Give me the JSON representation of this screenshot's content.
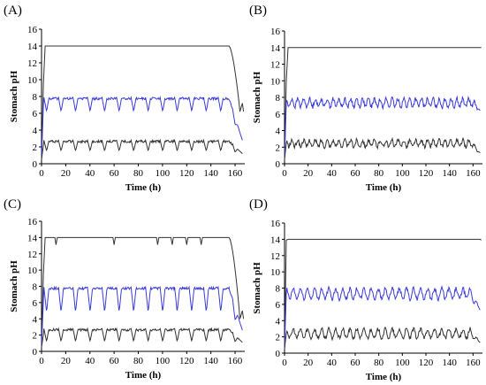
{
  "chart_data": [
    {
      "panel": "(A)",
      "type": "line",
      "xlabel": "Time (h)",
      "ylabel": "Stomach pH",
      "xlim": [
        0,
        168
      ],
      "ylim": [
        0,
        16
      ],
      "xticks": [
        0,
        20,
        40,
        60,
        80,
        100,
        120,
        140,
        160
      ],
      "yticks": [
        0,
        2,
        4,
        6,
        8,
        10,
        12,
        14,
        16
      ],
      "series": [
        {
          "color": "#333333",
          "pattern": "top_plateau",
          "level": 14,
          "start": 0.5,
          "early": 9.5,
          "drop_start": 155,
          "end_value": 6.2
        },
        {
          "color": "#3b3bd9",
          "pattern": "oscillating",
          "low": 6.2,
          "high": 7.9,
          "period": 12,
          "start": 0.5,
          "end_drop_start": 155,
          "end_value": 2.8
        },
        {
          "color": "#333333",
          "pattern": "oscillating",
          "low": 1.5,
          "high": 2.8,
          "period": 12,
          "start": 0.5,
          "end_drop_start": 155,
          "end_value": 1.2
        }
      ]
    },
    {
      "panel": "(B)",
      "type": "line",
      "xlabel": "Time (h)",
      "ylabel": "Stomach pH",
      "xlim": [
        0,
        168
      ],
      "ylim": [
        0,
        16
      ],
      "xticks": [
        0,
        20,
        40,
        60,
        80,
        100,
        120,
        140,
        160
      ],
      "yticks": [
        0,
        2,
        4,
        6,
        8,
        10,
        12,
        14,
        16
      ],
      "series": [
        {
          "color": "#333333",
          "pattern": "top_plateau",
          "level": 14,
          "start": 0.5,
          "early": 10,
          "drop_start": 999,
          "end_value": 14
        },
        {
          "color": "#3b3bd9",
          "pattern": "noisy",
          "low": 6.8,
          "high": 7.9,
          "period": 5,
          "start": 0.5,
          "end_drop_start": 160,
          "end_value": 6.4
        },
        {
          "color": "#333333",
          "pattern": "noisy",
          "low": 2.0,
          "high": 2.9,
          "period": 5,
          "start": 0.5,
          "end_drop_start": 158,
          "end_value": 1.3
        }
      ]
    },
    {
      "panel": "(C)",
      "type": "line",
      "xlabel": "Time (h)",
      "ylabel": "Stomach pH",
      "xlim": [
        0,
        168
      ],
      "ylim": [
        0,
        16
      ],
      "xticks": [
        0,
        20,
        40,
        60,
        80,
        100,
        120,
        140,
        160
      ],
      "yticks": [
        0,
        2,
        4,
        6,
        8,
        10,
        12,
        14,
        16
      ],
      "series": [
        {
          "color": "#333333",
          "pattern": "top_plateau_dips",
          "level": 14,
          "start": 0.5,
          "early": 9.5,
          "drop_start": 155,
          "end_value": 4.0,
          "dips": [
            12,
            60,
            96,
            108,
            120,
            132
          ]
        },
        {
          "color": "#3b3bd9",
          "pattern": "oscillating",
          "low": 4.8,
          "high": 7.9,
          "period": 12,
          "start": 0.5,
          "end_drop_start": 155,
          "end_value": 2.6
        },
        {
          "color": "#333333",
          "pattern": "oscillating",
          "low": 1.2,
          "high": 2.8,
          "period": 12,
          "start": 0.5,
          "end_drop_start": 155,
          "end_value": 1.1
        }
      ]
    },
    {
      "panel": "(D)",
      "type": "line",
      "xlabel": "Time (h)",
      "ylabel": "Stomach pH",
      "xlim": [
        0,
        168
      ],
      "ylim": [
        0,
        16
      ],
      "xticks": [
        0,
        20,
        40,
        60,
        80,
        100,
        120,
        140,
        160
      ],
      "yticks": [
        0,
        2,
        4,
        6,
        8,
        10,
        12,
        14,
        16
      ],
      "series": [
        {
          "color": "#333333",
          "pattern": "top_plateau",
          "level": 14,
          "start": 0.5,
          "early": 13.9,
          "drop_start": 999,
          "end_value": 13.9
        },
        {
          "color": "#3b3bd9",
          "pattern": "noisy",
          "low": 6.6,
          "high": 8.0,
          "period": 6,
          "start": 0.5,
          "end_drop_start": 158,
          "end_value": 5.3
        },
        {
          "color": "#333333",
          "pattern": "noisy",
          "low": 1.8,
          "high": 3.0,
          "period": 6,
          "start": 0.5,
          "end_drop_start": 158,
          "end_value": 1.3
        }
      ]
    }
  ]
}
